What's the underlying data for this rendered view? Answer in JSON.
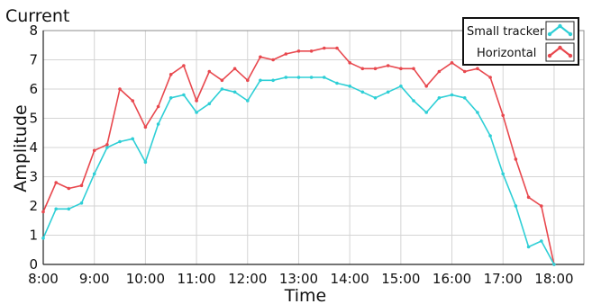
{
  "chart_data": {
    "type": "line",
    "title": "Current",
    "xlabel": "Time",
    "ylabel": "Amplitude",
    "xlim": [
      "8:00",
      "18:00"
    ],
    "ylim": [
      0,
      8
    ],
    "grid": true,
    "legend_position": "top-right",
    "x_tick_labels": [
      "8:00",
      "9:00",
      "10:00",
      "11:00",
      "12:00",
      "13:00",
      "14:00",
      "15:00",
      "16:00",
      "17:00",
      "18:00"
    ],
    "y_tick_labels": [
      "0",
      "1",
      "2",
      "3",
      "4",
      "5",
      "6",
      "7",
      "8"
    ],
    "x": [
      "8:00",
      "8:15",
      "8:30",
      "8:45",
      "9:00",
      "9:15",
      "9:30",
      "9:45",
      "10:00",
      "10:15",
      "10:30",
      "10:45",
      "11:00",
      "11:15",
      "11:30",
      "11:45",
      "12:00",
      "12:15",
      "12:30",
      "12:45",
      "13:00",
      "13:15",
      "13:30",
      "13:45",
      "14:00",
      "14:15",
      "14:30",
      "14:45",
      "15:00",
      "15:15",
      "15:30",
      "15:45",
      "16:00",
      "16:15",
      "16:30",
      "16:45",
      "17:00",
      "17:15",
      "17:30",
      "17:45",
      "18:00"
    ],
    "series": [
      {
        "name": "Small tracker",
        "color": "#2ecfd6",
        "values": [
          0.9,
          1.9,
          1.9,
          2.1,
          3.1,
          4.0,
          4.2,
          4.3,
          3.5,
          4.8,
          5.7,
          5.8,
          5.2,
          5.5,
          6.0,
          5.9,
          5.6,
          6.3,
          6.3,
          6.4,
          6.4,
          6.4,
          6.4,
          6.2,
          6.1,
          5.9,
          5.7,
          5.9,
          6.1,
          5.6,
          5.2,
          5.7,
          5.8,
          5.7,
          5.2,
          4.4,
          3.1,
          2.0,
          0.6,
          0.8,
          0.0
        ]
      },
      {
        "name": "Horizontal",
        "color": "#e8484e",
        "values": [
          1.8,
          2.8,
          2.6,
          2.7,
          3.9,
          4.1,
          6.0,
          5.6,
          4.7,
          5.4,
          6.5,
          6.8,
          5.6,
          6.6,
          6.3,
          6.7,
          6.3,
          7.1,
          7.0,
          7.2,
          7.3,
          7.3,
          7.4,
          7.4,
          6.9,
          6.7,
          6.7,
          6.8,
          6.7,
          6.7,
          6.1,
          6.6,
          6.9,
          6.6,
          6.7,
          6.4,
          5.1,
          3.6,
          2.3,
          2.0,
          0.0
        ]
      }
    ]
  }
}
